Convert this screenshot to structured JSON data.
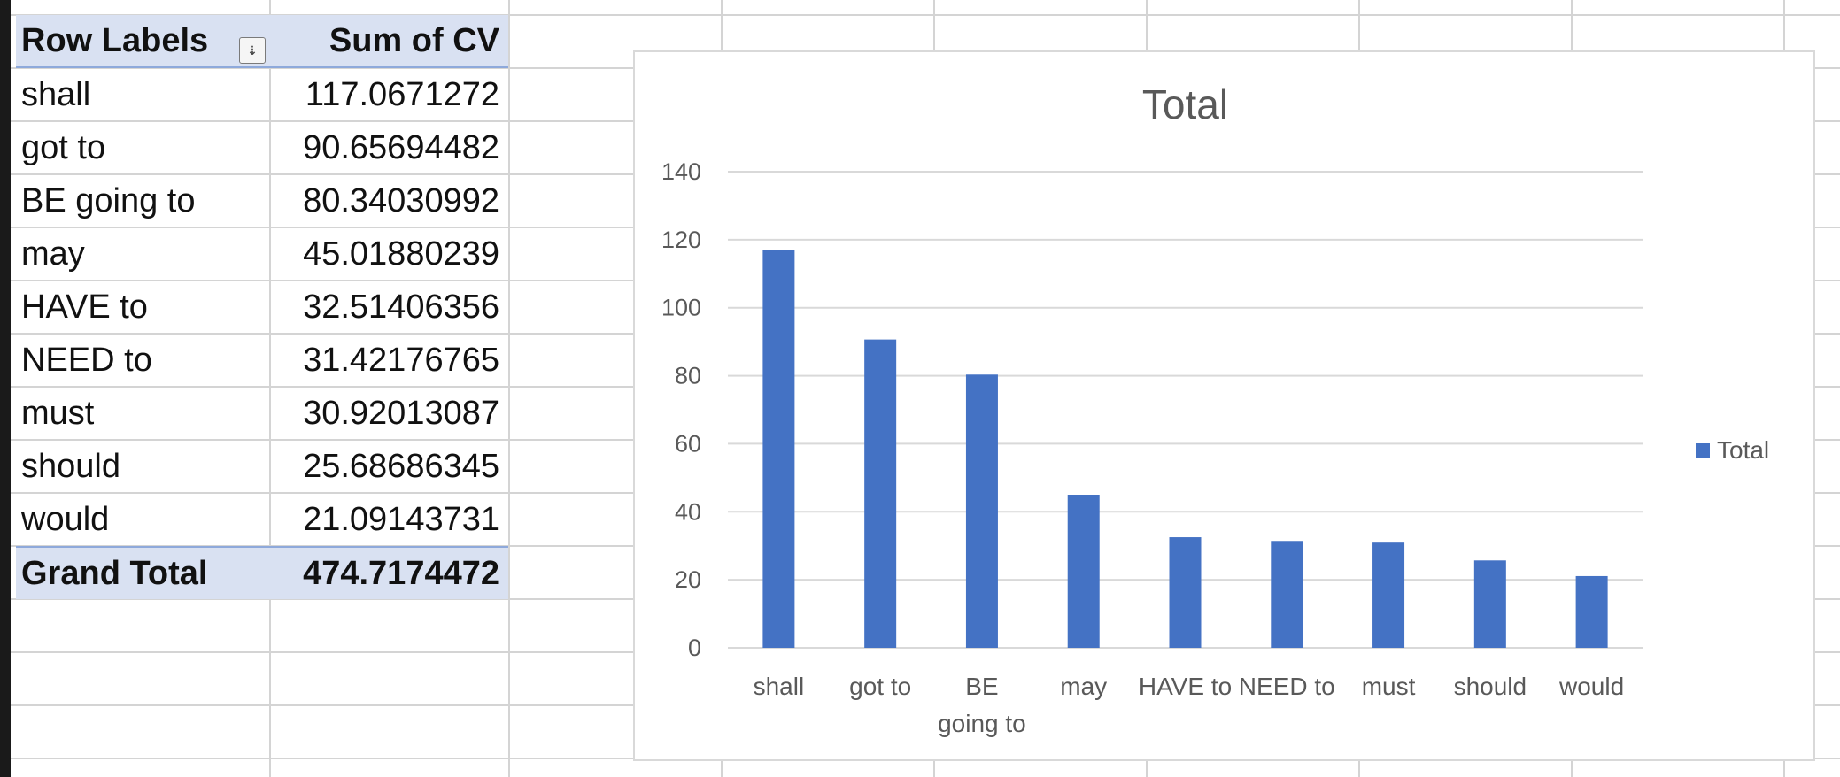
{
  "pivot": {
    "header": {
      "row_labels": "Row Labels",
      "sum_label": "Sum of CV"
    },
    "rows": [
      {
        "label": "shall",
        "value": "117.0671272"
      },
      {
        "label": "got to",
        "value": "90.65694482"
      },
      {
        "label": "BE going to",
        "value": "80.34030992"
      },
      {
        "label": "may",
        "value": "45.01880239"
      },
      {
        "label": "HAVE to",
        "value": "32.51406356"
      },
      {
        "label": "NEED to",
        "value": "31.42176765"
      },
      {
        "label": "must",
        "value": "30.92013087"
      },
      {
        "label": "should",
        "value": "25.68686345"
      },
      {
        "label": "would",
        "value": "21.09143731"
      }
    ],
    "total": {
      "label": "Grand Total",
      "value": "474.7174472"
    },
    "filter_icon": "sort-filter-icon"
  },
  "chart_data": {
    "type": "bar",
    "title": "Total",
    "categories": [
      "shall",
      "got to",
      "BE going to",
      "may",
      "HAVE to",
      "NEED to",
      "must",
      "should",
      "would"
    ],
    "category_lines": [
      [
        "shall"
      ],
      [
        "got to"
      ],
      [
        "BE",
        "going to"
      ],
      [
        "may"
      ],
      [
        "HAVE to"
      ],
      [
        "NEED to"
      ],
      [
        "must"
      ],
      [
        "should"
      ],
      [
        "would"
      ]
    ],
    "series": [
      {
        "name": "Total",
        "values": [
          117.0671272,
          90.65694482,
          80.34030992,
          45.01880239,
          32.51406356,
          31.42176765,
          30.92013087,
          25.68686345,
          21.09143731
        ]
      }
    ],
    "ylim": [
      0,
      140
    ],
    "yticks": [
      0,
      20,
      40,
      60,
      80,
      100,
      120,
      140
    ],
    "xlabel": "",
    "ylabel": "",
    "grid": true,
    "legend_position": "right",
    "bar_color": "#4472c4"
  }
}
